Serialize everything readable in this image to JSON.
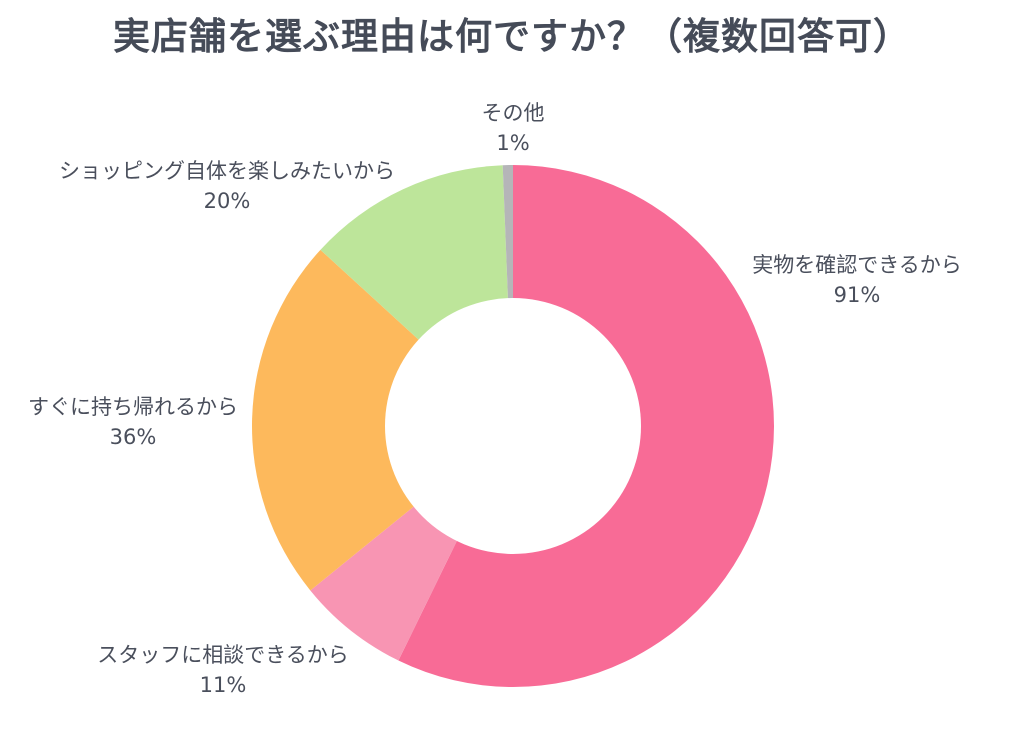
{
  "chart_data": {
    "type": "pie",
    "title": "実店舗を選ぶ理由は何ですか？（複数回答可）",
    "slices": [
      {
        "label": "実物を確認できるから",
        "value_label": "91%",
        "value": 91,
        "color": "#f86b96"
      },
      {
        "label": "スタッフに相談できるから",
        "value_label": "11%",
        "value": 11,
        "color": "#f895b3"
      },
      {
        "label": "すぐに持ち帰れるから",
        "value_label": "36%",
        "value": 36,
        "color": "#fdb95c"
      },
      {
        "label": "ショッピング自体を楽しみたいから",
        "value_label": "20%",
        "value": 20,
        "color": "#bde59a"
      },
      {
        "label": "その他",
        "value_label": "1%",
        "value": 1,
        "color": "#b5b5b8"
      }
    ],
    "start_angle_deg": 0,
    "direction": "clockwise",
    "inner_radius_ratio": 0.49
  }
}
